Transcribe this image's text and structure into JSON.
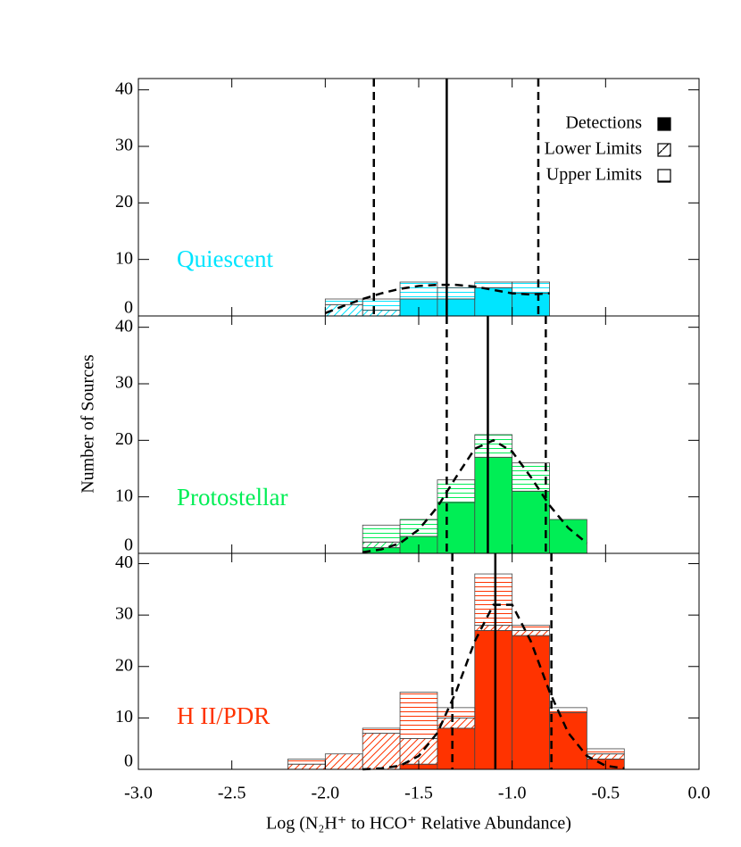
{
  "chart_data": {
    "type": "histogram",
    "xlabel": "Log (N₂H⁺ to HCO⁺ Relative Abundance)",
    "ylabel": "Number of Sources",
    "xlim": [
      -3,
      0
    ],
    "xticks": [
      {
        "value": -3,
        "label": "-3.0"
      },
      {
        "value": -2.5,
        "label": "-2.5"
      },
      {
        "value": -2,
        "label": "-2.0"
      },
      {
        "value": -1.5,
        "label": "-1.5"
      },
      {
        "value": -1,
        "label": "-1.0"
      },
      {
        "value": -0.5,
        "label": "-0.5"
      },
      {
        "value": 0,
        "label": "0.0"
      }
    ],
    "legend": [
      "Detections",
      "Lower Limits",
      "Upper Limits"
    ],
    "panels": [
      {
        "name": "Quiescent",
        "color": "#00e5ff",
        "ylim": [
          0,
          42
        ],
        "yticks": [
          0,
          10,
          20,
          30,
          40
        ],
        "bins": [
          -2.0,
          -1.8,
          -1.6,
          -1.4,
          -1.2,
          -1.0,
          -0.8
        ],
        "series": [
          {
            "values": [
              0,
              0,
              3,
              3,
              5,
              4
            ]
          },
          {
            "values": [
              2,
              1,
              0,
              0,
              0,
              0
            ]
          },
          {
            "values": [
              1,
              2,
              3,
              2,
              1,
              2
            ]
          }
        ],
        "vlines_solid": [
          -1.35
        ],
        "vlines_dashed": [
          -1.74,
          -0.86
        ],
        "curve": {
          "x": [
            -2.0,
            -1.9,
            -1.8,
            -1.7,
            -1.6,
            -1.5,
            -1.4,
            -1.3,
            -1.2,
            -1.1,
            -1.0,
            -0.9,
            -0.8
          ],
          "y": [
            0.5,
            1.8,
            3,
            4,
            4.8,
            5.3,
            5.5,
            5.5,
            5.2,
            4.6,
            4,
            3.8,
            4
          ]
        }
      },
      {
        "name": "Protostellar",
        "color": "#00ee55",
        "ylim": [
          0,
          42
        ],
        "yticks": [
          0,
          10,
          20,
          30,
          40
        ],
        "bins": [
          -1.8,
          -1.6,
          -1.4,
          -1.2,
          -1.0,
          -0.8,
          -0.6
        ],
        "series": [
          {
            "values": [
              1,
              3,
              9,
              17,
              11,
              6
            ]
          },
          {
            "values": [
              1,
              0,
              0,
              0,
              0,
              0
            ]
          },
          {
            "values": [
              3,
              3,
              4,
              4,
              5,
              0
            ]
          }
        ],
        "vlines_solid": [
          -1.13
        ],
        "vlines_dashed": [
          -1.35,
          -0.82
        ],
        "curve": {
          "x": [
            -1.8,
            -1.7,
            -1.6,
            -1.5,
            -1.4,
            -1.3,
            -1.2,
            -1.1,
            -1.0,
            -0.9,
            -0.8,
            -0.7,
            -0.6
          ],
          "y": [
            0.2,
            0.7,
            1.8,
            4.2,
            8.2,
            13.5,
            18.5,
            20,
            18,
            13.5,
            8.5,
            4.5,
            1.8
          ]
        }
      },
      {
        "name": "H II/PDR",
        "color": "#ff3300",
        "ylim": [
          0,
          42
        ],
        "yticks": [
          0,
          10,
          20,
          30,
          40
        ],
        "bins": [
          -2.2,
          -2.0,
          -1.8,
          -1.6,
          -1.4,
          -1.2,
          -1.0,
          -0.8,
          -0.6,
          -0.4
        ],
        "series": [
          {
            "values": [
              0,
              0,
              0,
              1,
              8,
              27,
              26,
              11,
              2
            ]
          },
          {
            "values": [
              1,
              3,
              7,
              5,
              2,
              1,
              1,
              0,
              1
            ]
          },
          {
            "values": [
              1,
              0,
              1,
              9,
              2,
              10,
              1,
              1,
              1
            ]
          }
        ],
        "vlines_solid": [
          -1.09
        ],
        "vlines_dashed": [
          -1.32,
          -0.79
        ],
        "curve": {
          "x": [
            -1.8,
            -1.7,
            -1.6,
            -1.5,
            -1.4,
            -1.3,
            -1.2,
            -1.1,
            -1.0,
            -0.9,
            -0.8,
            -0.7,
            -0.6,
            -0.5,
            -0.4
          ],
          "y": [
            0,
            0.2,
            0.7,
            2.6,
            7.1,
            15.1,
            24.9,
            32,
            32,
            24.9,
            15.1,
            7.1,
            2.6,
            0.7,
            0.2
          ]
        }
      }
    ]
  }
}
